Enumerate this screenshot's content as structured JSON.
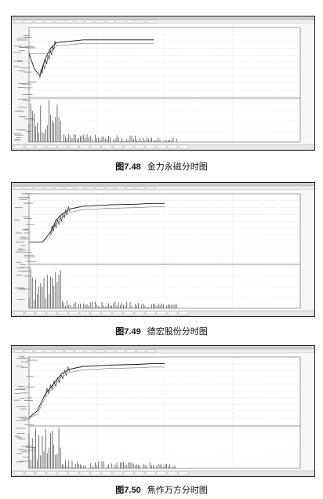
{
  "figures": [
    {
      "caption_number": "图7.48",
      "caption_title": "金力永磁分时图",
      "chart_data": {
        "type": "line",
        "title": "",
        "series": [
          {
            "values": [
              0.62,
              0.4,
              0.3,
              0.55,
              0.7,
              0.78,
              0.8,
              0.82,
              0.82,
              0.82,
              0.82
            ]
          }
        ],
        "x": [
          0,
          0.02,
          0.04,
          0.06,
          0.08,
          0.1,
          0.15,
          0.2,
          0.3,
          0.4,
          0.46
        ]
      }
    },
    {
      "caption_number": "图7.49",
      "caption_title": "德宏股份分时图",
      "chart_data": {
        "type": "line",
        "title": "",
        "series": [
          {
            "values": [
              0.3,
              0.3,
              0.45,
              0.62,
              0.7,
              0.78,
              0.82,
              0.84,
              0.85,
              0.86,
              0.86
            ]
          }
        ],
        "x": [
          0,
          0.05,
          0.08,
          0.1,
          0.12,
          0.15,
          0.2,
          0.3,
          0.4,
          0.45,
          0.5
        ]
      }
    },
    {
      "caption_number": "图7.50",
      "caption_title": "焦作万方分时图",
      "chart_data": {
        "type": "line",
        "title": "",
        "series": [
          {
            "values": [
              0.1,
              0.2,
              0.45,
              0.6,
              0.75,
              0.82,
              0.86,
              0.88,
              0.89,
              0.9,
              0.9
            ]
          }
        ],
        "x": [
          0,
          0.03,
          0.06,
          0.09,
          0.12,
          0.15,
          0.2,
          0.3,
          0.4,
          0.45,
          0.5
        ]
      }
    }
  ]
}
